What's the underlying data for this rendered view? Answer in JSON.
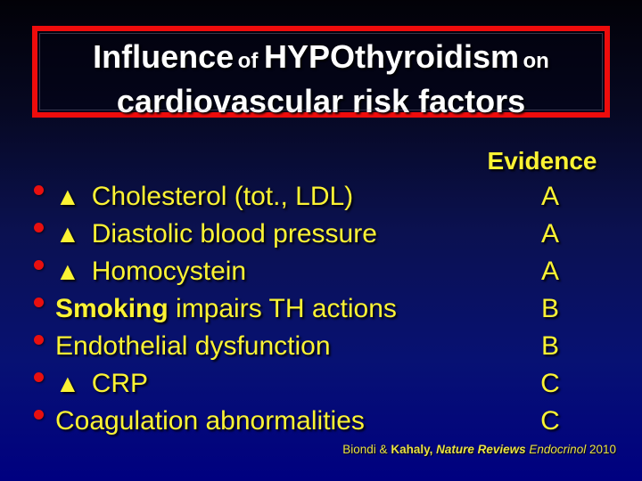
{
  "colors": {
    "background_top": "#020107",
    "background_bottom": "#000080",
    "title_border_red": "#ee0c0c",
    "title_text_white": "#ffffff",
    "accent_yellow": "#fbf334",
    "bullet_red": "#e80f0f"
  },
  "title": {
    "line1_part1": "Influence",
    "line1_part2": " of ",
    "line1_part3": "HYPOthyroidism",
    "line1_part4": " on",
    "line2": "cardiovascular risk factors"
  },
  "evidence_header": "Evidence",
  "items": [
    {
      "marker": "▲",
      "text": "Cholesterol (tot., LDL)",
      "evidence": "A"
    },
    {
      "marker": "▲",
      "text": "Diastolic blood pressure",
      "evidence": "A"
    },
    {
      "marker": "▲",
      "text": "Homocystein",
      "evidence": "A"
    },
    {
      "bold": "Smoking",
      "text": " impairs TH actions",
      "evidence": "B"
    },
    {
      "text": "Endothelial dysfunction",
      "evidence": "B"
    },
    {
      "marker": "▲",
      "text": "CRP",
      "evidence": "C"
    },
    {
      "text": "Coagulation abnormalities",
      "evidence": "C"
    }
  ],
  "citation": {
    "part1": "Biondi & ",
    "part2": "Kahaly, ",
    "part3": "Nature Reviews ",
    "part4": "Endocrinol ",
    "part5": "2010"
  }
}
